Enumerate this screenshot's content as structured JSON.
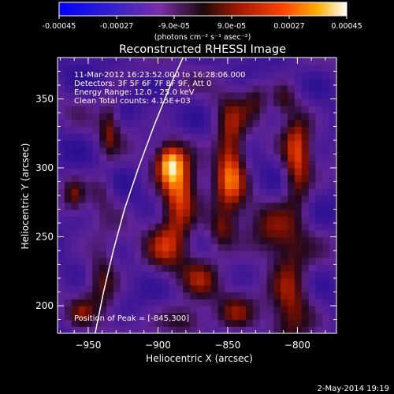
{
  "colorbar": {
    "min": -0.00045,
    "max": 0.00045,
    "ticks": [
      {
        "value": -0.00045,
        "label": "-0.00045"
      },
      {
        "value": -0.00027,
        "label": "-0.00027"
      },
      {
        "value": -9e-05,
        "label": "-9.0e-05"
      },
      {
        "value": 9e-05,
        "label": "9.0e-05"
      },
      {
        "value": 0.00027,
        "label": "0.00027"
      },
      {
        "value": 0.00045,
        "label": "0.00045"
      }
    ],
    "unit_label": "(photons cm⁻² s⁻¹ asec⁻²)"
  },
  "chart_data": {
    "type": "heatmap",
    "title": "Reconstructed RHESSI Image",
    "xlabel": "Heliocentric X (arcsec)",
    "ylabel": "Heliocentric Y (arcsec)",
    "xlim": [
      -972,
      -772
    ],
    "ylim": [
      180,
      380
    ],
    "xticks": [
      -950,
      -900,
      -850,
      -800
    ],
    "yticks": [
      200,
      250,
      300,
      350
    ],
    "info_lines": [
      "11-Mar-2012 16:23:52.000 to 16:28:06.000",
      "Detectors: 3F 5F 6F 7F 8F 9F, Att 0",
      "Energy Range: 12.0 - 25.0 keV",
      "Clean     Total counts: 4.15E+03"
    ],
    "peak_label": "Position of Peak = [-845,300]",
    "peak": [
      -845,
      300
    ],
    "limb_curve": [
      [
        -945,
        180
      ],
      [
        -939,
        210
      ],
      [
        -932,
        240
      ],
      [
        -924,
        270
      ],
      [
        -914,
        300
      ],
      [
        -903,
        330
      ],
      [
        -891,
        360
      ],
      [
        -882,
        380
      ]
    ],
    "sources": [
      {
        "x": -885,
        "y": 280,
        "sx": 9,
        "sy": 22,
        "amp": 1.0
      },
      {
        "x": -892,
        "y": 305,
        "sx": 7,
        "sy": 10,
        "amp": 0.85
      },
      {
        "x": -848,
        "y": 305,
        "sx": 8,
        "sy": 28,
        "amp": 1.05
      },
      {
        "x": -855,
        "y": 255,
        "sx": 7,
        "sy": 10,
        "amp": 0.55
      },
      {
        "x": -800,
        "y": 305,
        "sx": 7,
        "sy": 25,
        "amp": 0.9
      },
      {
        "x": -810,
        "y": 350,
        "sx": 6,
        "sy": 8,
        "amp": 0.5
      },
      {
        "x": -935,
        "y": 330,
        "sx": 5,
        "sy": 15,
        "amp": 0.55
      },
      {
        "x": -940,
        "y": 285,
        "sx": 7,
        "sy": 10,
        "amp": 0.4
      },
      {
        "x": -960,
        "y": 280,
        "sx": 5,
        "sy": 8,
        "amp": 0.5
      },
      {
        "x": -940,
        "y": 220,
        "sx": 8,
        "sy": 18,
        "amp": 0.6
      },
      {
        "x": -895,
        "y": 245,
        "sx": 10,
        "sy": 14,
        "amp": 0.55
      },
      {
        "x": -870,
        "y": 220,
        "sx": 10,
        "sy": 12,
        "amp": 0.5
      },
      {
        "x": -820,
        "y": 250,
        "sx": 12,
        "sy": 15,
        "amp": 0.5
      },
      {
        "x": -805,
        "y": 210,
        "sx": 10,
        "sy": 25,
        "amp": 0.75
      },
      {
        "x": -880,
        "y": 190,
        "sx": 12,
        "sy": 8,
        "amp": 0.6
      },
      {
        "x": -845,
        "y": 195,
        "sx": 10,
        "sy": 10,
        "amp": 0.5
      },
      {
        "x": -955,
        "y": 195,
        "sx": 6,
        "sy": 8,
        "amp": 0.4
      },
      {
        "x": -830,
        "y": 350,
        "sx": 6,
        "sy": 10,
        "amp": 0.4
      }
    ]
  },
  "footer": {
    "timestamp": "2-May-2014 19:19"
  }
}
